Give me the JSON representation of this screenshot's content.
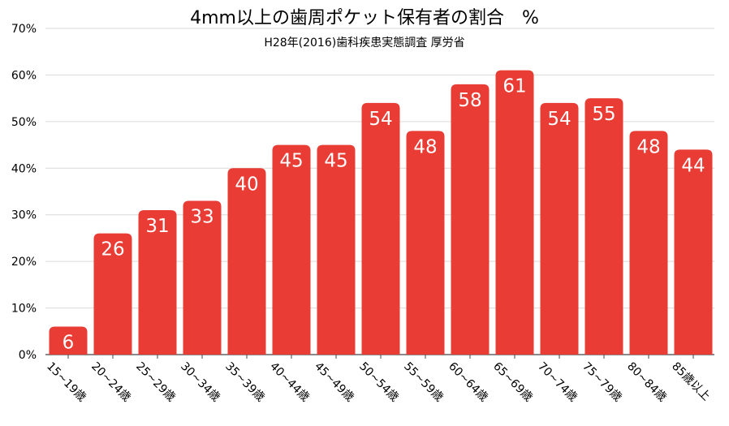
{
  "chart_data": {
    "type": "bar",
    "title": "4mm以上の歯周ポケット保有者の割合　%",
    "subtitle": "H28年(2016)歯科疾患実態調査 厚労省",
    "categories": [
      "15~19歳",
      "20~24歳",
      "25~29歳",
      "30~34歳",
      "35~39歳",
      "40~44歳",
      "45~49歳",
      "50~54歳",
      "55~59歳",
      "60~64歳",
      "65~69歳",
      "70~74歳",
      "75~79歳",
      "80~84歳",
      "85歳以上"
    ],
    "values": [
      6,
      26,
      31,
      33,
      40,
      45,
      45,
      54,
      48,
      58,
      61,
      54,
      55,
      48,
      44
    ],
    "ylim": [
      0,
      70
    ],
    "yticks": [
      "0%",
      "10%",
      "20%",
      "30%",
      "40%",
      "50%",
      "60%",
      "70%"
    ],
    "grid": true,
    "bar_color": "#e83c35"
  }
}
